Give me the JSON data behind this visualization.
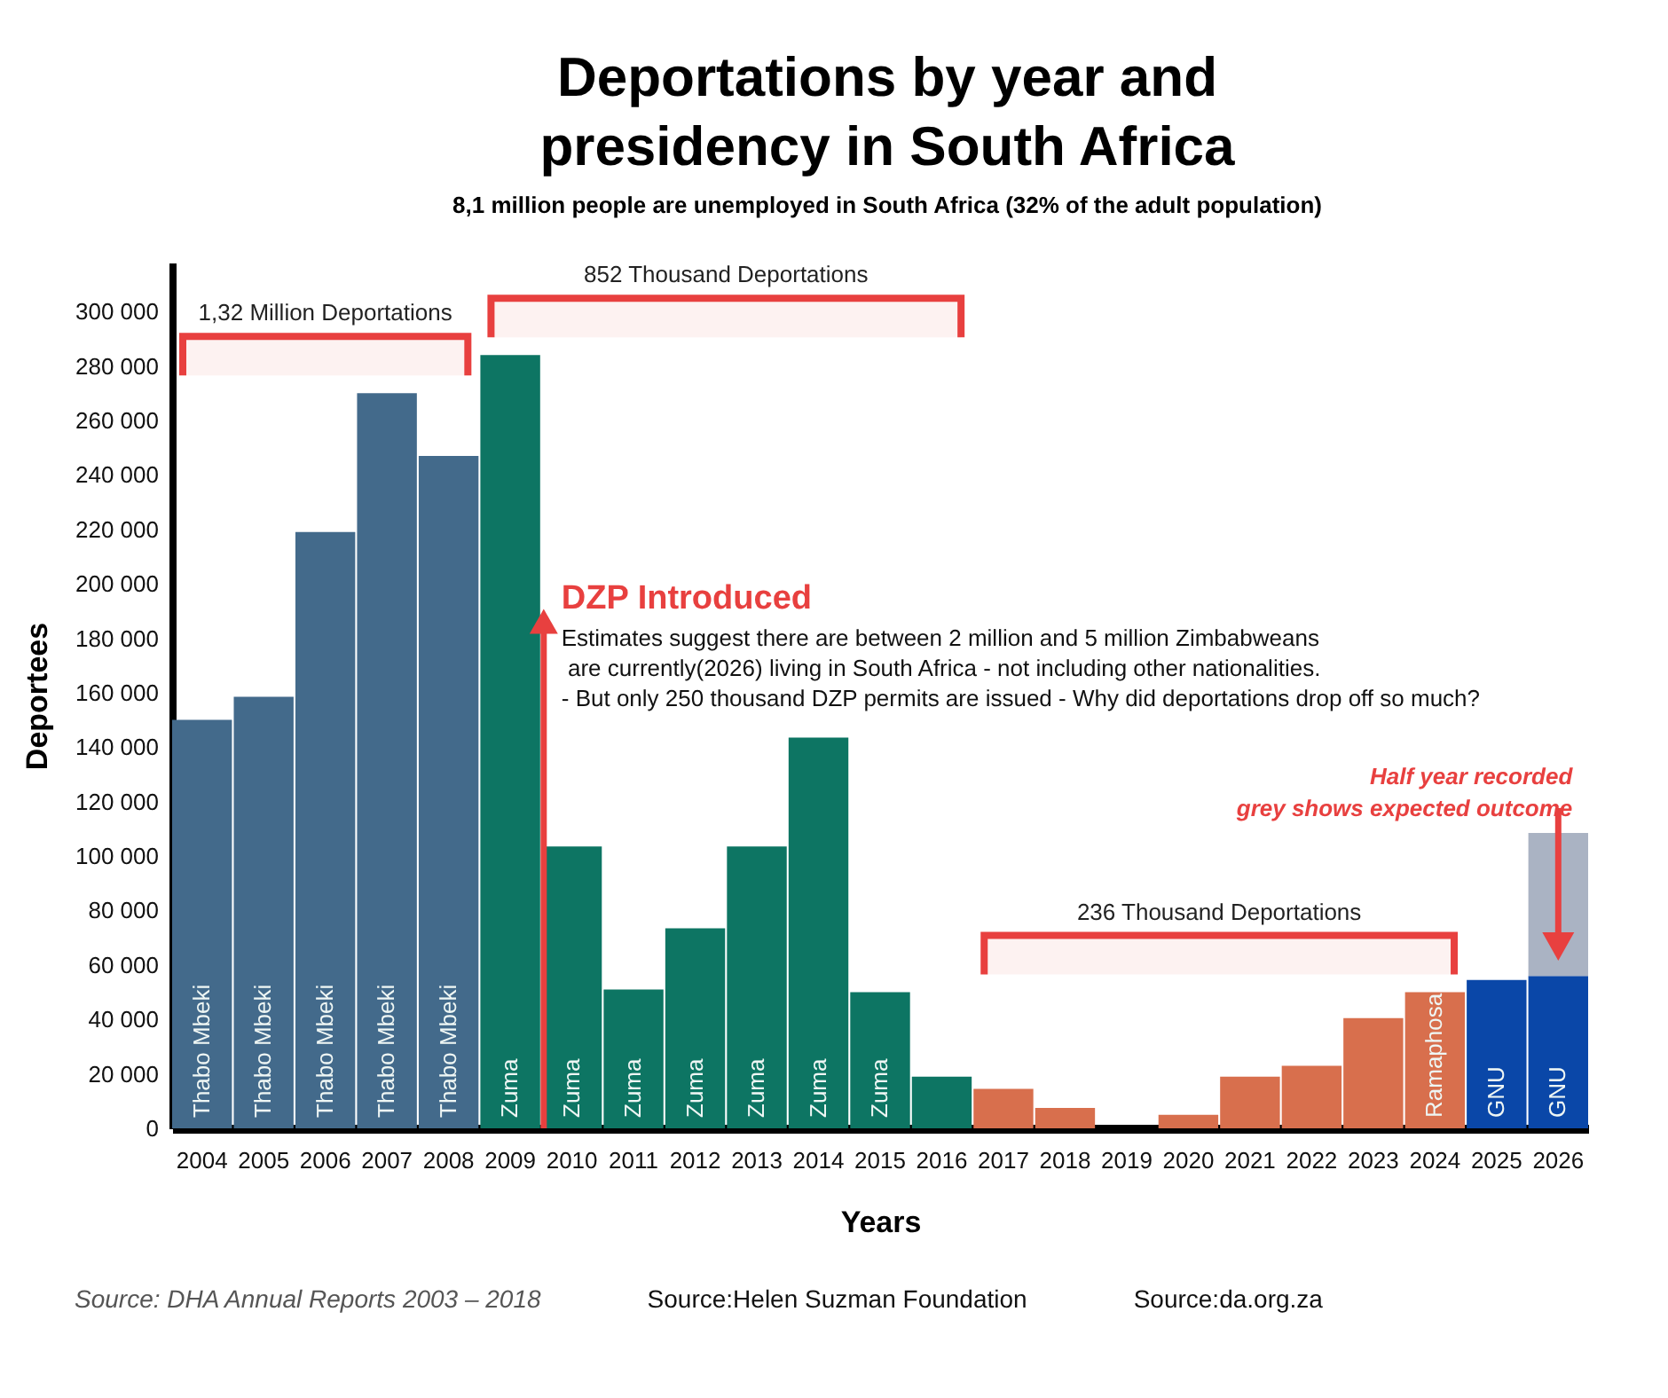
{
  "chart_data": {
    "type": "bar",
    "title": "Deportations by year and presidency in South Africa",
    "subtitle": "8,1 million people are unemployed in South Africa (32% of the adult population)",
    "xlabel": "Years",
    "ylabel": "Deportees",
    "stacked": true,
    "categories": [
      "2004",
      "2005",
      "2006",
      "2007",
      "2008",
      "2009",
      "2010",
      "2011",
      "2012",
      "2013",
      "2014",
      "2015",
      "2016",
      "2017",
      "2018",
      "2019",
      "2020",
      "2021",
      "2022",
      "2023",
      "2024",
      "2025",
      "2026"
    ],
    "series": [
      {
        "name": "Thabo Mbeki",
        "color": "#436a8b",
        "values": [
          150000,
          158500,
          219000,
          270000,
          247000,
          null,
          null,
          null,
          null,
          null,
          null,
          null,
          null,
          null,
          null,
          null,
          null,
          null,
          null,
          null,
          null,
          null,
          null
        ]
      },
      {
        "name": "Zuma",
        "color": "#0d7563",
        "values": [
          null,
          null,
          null,
          null,
          null,
          284000,
          103500,
          51000,
          73500,
          103500,
          143500,
          50000,
          19000,
          null,
          null,
          null,
          null,
          null,
          null,
          null,
          null,
          null,
          null
        ]
      },
      {
        "name": "Ramaphosa",
        "color": "#d86f4d",
        "values": [
          null,
          null,
          null,
          null,
          null,
          null,
          null,
          null,
          null,
          null,
          null,
          null,
          null,
          14500,
          7500,
          null,
          5000,
          19000,
          23000,
          40500,
          50000,
          null,
          null
        ]
      },
      {
        "name": "GNU",
        "color": "#0a47a8",
        "values": [
          null,
          null,
          null,
          null,
          null,
          null,
          null,
          null,
          null,
          null,
          null,
          null,
          null,
          null,
          null,
          null,
          null,
          null,
          null,
          null,
          null,
          54500,
          56000
        ]
      },
      {
        "color": "#aab3c3",
        "values": [
          null,
          null,
          null,
          null,
          null,
          null,
          null,
          null,
          null,
          null,
          null,
          null,
          null,
          null,
          null,
          null,
          null,
          null,
          null,
          null,
          null,
          null,
          52500
        ]
      }
    ],
    "ylim": [
      0,
      318000
    ],
    "yticks": [
      0,
      {
        "value": 20000,
        "label": "20 000"
      },
      {
        "value": 40000,
        "label": "40 000"
      },
      {
        "value": 60000,
        "label": "60 000"
      },
      {
        "value": 80000,
        "label": "80 000"
      },
      {
        "value": 100000,
        "label": "100 000"
      },
      {
        "value": 120000,
        "label": "120 000"
      },
      {
        "value": 140000,
        "label": "140 000"
      },
      {
        "value": 160000,
        "label": "160 000"
      },
      {
        "value": 180000,
        "label": "180 000"
      },
      {
        "value": 200000,
        "label": "200 000"
      },
      {
        "value": 220000,
        "label": "220 000"
      },
      {
        "value": 240000,
        "label": "240 000"
      },
      {
        "value": 260000,
        "label": "260 000"
      },
      {
        "value": 280000,
        "label": "280 000"
      },
      {
        "value": 300000,
        "label": "300 000"
      }
    ],
    "bands": [
      {
        "axis": "x",
        "from": "2004",
        "to": "2008",
        "label": "1,32 Million Deportations",
        "color": "#e8403f"
      },
      {
        "axis": "x",
        "from": "2009",
        "to": "2016",
        "label": "852 Thousand Deportations",
        "color": "#e8403f"
      },
      {
        "axis": "x",
        "from": "2017",
        "to": "2024",
        "label": "236 Thousand Deportations",
        "color": "#e8403f"
      }
    ],
    "ref_lines": [
      {
        "axis": "x",
        "value": "2009",
        "label": "DZP Introduced",
        "color": "#e8403f"
      }
    ],
    "annotations": [
      "Estimates suggest there are between 2 million and 5 million Zimbabweans\n are currently(2026) living in South Africa - not including other nationalities.\n- But only 250 thousand DZP permits are issued - Why did deportations drop off so much?",
      {
        "text": "Half year recorded\ngrey shows expected outcome",
        "x": "2026",
        "y": 108500
      },
      "Source: DHA Annual Reports 2003 – 2018",
      "Source:Helen Suzman Foundation",
      "Source:da.org.za"
    ]
  }
}
